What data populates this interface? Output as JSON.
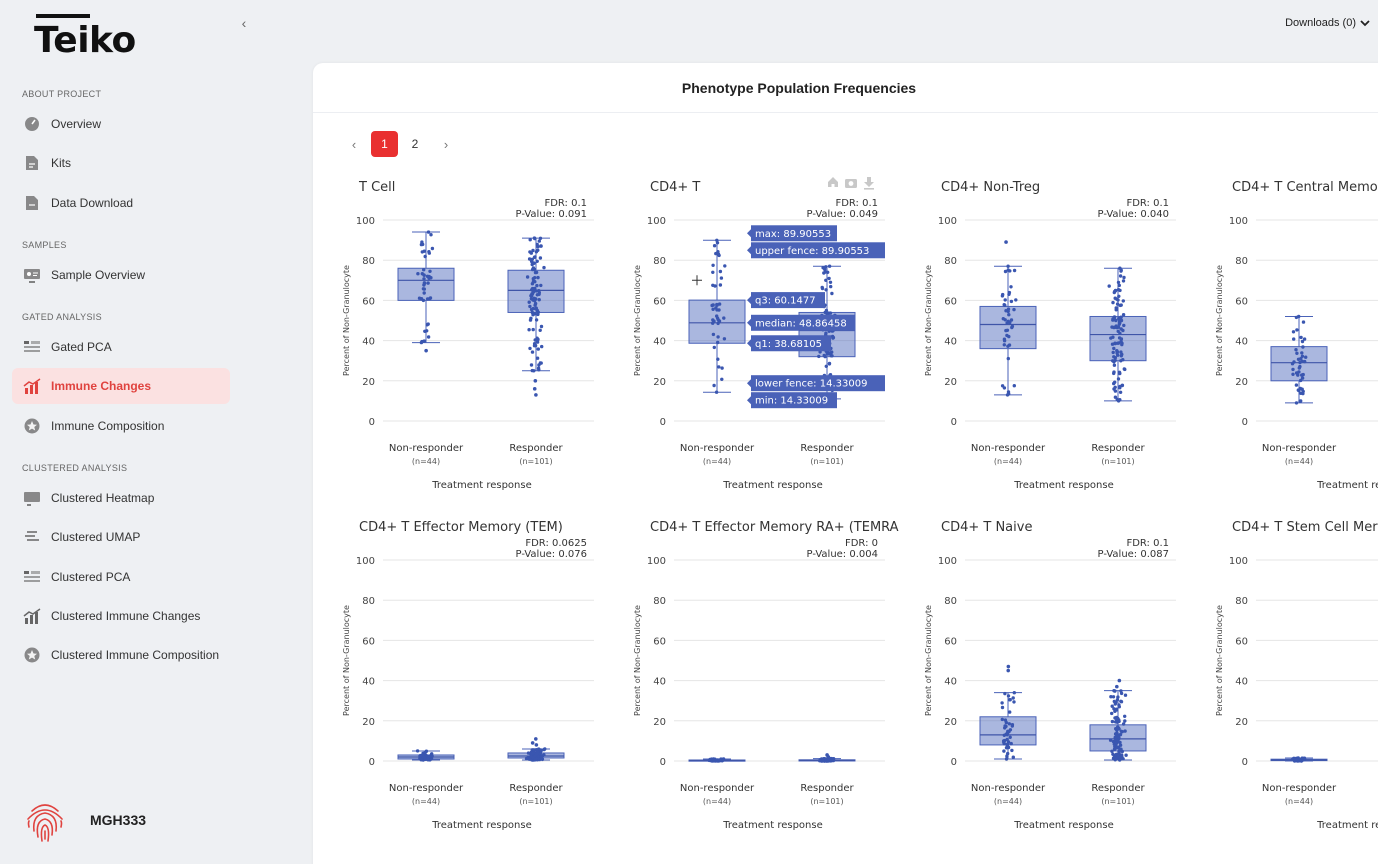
{
  "brand": {
    "name": "Teiko"
  },
  "header": {
    "downloads": "Downloads (0)"
  },
  "sidebar": {
    "sections": [
      {
        "title": "ABOUT PROJECT",
        "items": [
          {
            "label": "Overview",
            "icon": "gauge-icon"
          },
          {
            "label": "Kits",
            "icon": "document-icon"
          },
          {
            "label": "Data Download",
            "icon": "file-download-icon"
          }
        ]
      },
      {
        "title": "SAMPLES",
        "items": [
          {
            "label": "Sample Overview",
            "icon": "monitor-icon"
          }
        ]
      },
      {
        "title": "GATED ANALYSIS",
        "items": [
          {
            "label": "Gated PCA",
            "icon": "pca-icon"
          },
          {
            "label": "Immune Changes",
            "icon": "line-chart-icon",
            "active": true
          },
          {
            "label": "Immune Composition",
            "icon": "star-badge-icon"
          }
        ]
      },
      {
        "title": "CLUSTERED ANALYSIS",
        "items": [
          {
            "label": "Clustered Heatmap",
            "icon": "heatmap-icon"
          },
          {
            "label": "Clustered UMAP",
            "icon": "umap-icon"
          },
          {
            "label": "Clustered PCA",
            "icon": "pca-icon"
          },
          {
            "label": "Clustered Immune Changes",
            "icon": "line-chart-icon"
          },
          {
            "label": "Clustered Immune Composition",
            "icon": "star-badge-icon"
          }
        ]
      }
    ],
    "project": "MGH333"
  },
  "main": {
    "title": "Phenotype Population Frequencies",
    "pagination": {
      "prev": "‹",
      "next": "›",
      "pages": [
        "1",
        "2"
      ],
      "current": "1"
    }
  },
  "chart_data": [
    {
      "type": "box",
      "title": "T Cell",
      "fdr": "FDR: 0.1",
      "pvalue": "P-Value: 0.091",
      "ylabel": "Percent of Non-Granulocyte",
      "xlabel": "Treatment response",
      "ylim": [
        0,
        100
      ],
      "yticks": [
        0,
        20,
        40,
        60,
        80,
        100
      ],
      "groups": [
        {
          "name": "Non-responder",
          "n": "(n=44)",
          "min": 39,
          "q1": 60,
          "median": 70,
          "q3": 76,
          "max": 94,
          "points": 44,
          "outliers": [
            35
          ]
        },
        {
          "name": "Responder",
          "n": "(n=101)",
          "min": 25,
          "q1": 54,
          "median": 65,
          "q3": 75,
          "max": 91,
          "points": 101,
          "outliers": [
            13,
            16,
            20
          ]
        }
      ]
    },
    {
      "type": "box",
      "title": "CD4+ T",
      "fdr": "FDR: 0.1",
      "pvalue": "P-Value: 0.049",
      "ylabel": "Percent of Non-Granulocyte",
      "xlabel": "Treatment response",
      "ylim": [
        0,
        100
      ],
      "yticks": [
        0,
        20,
        40,
        60,
        80,
        100
      ],
      "groups": [
        {
          "name": "Non-responder",
          "n": "(n=44)",
          "min": 14.33,
          "q1": 38.68,
          "median": 48.86,
          "q3": 60.15,
          "max": 89.91,
          "points": 44,
          "outliers": []
        },
        {
          "name": "Responder",
          "n": "(n=101)",
          "min": 11,
          "q1": 32,
          "median": 45,
          "q3": 54,
          "max": 77,
          "points": 101,
          "outliers": []
        }
      ],
      "hover": [
        "max: 89.90553",
        "upper fence: 89.90553",
        "q3: 60.1477",
        "median: 48.86458",
        "q1: 38.68105",
        "lower fence: 14.33009",
        "min: 14.33009"
      ],
      "modebar": [
        "home-icon",
        "camera-icon",
        "download-icon"
      ]
    },
    {
      "type": "box",
      "title": "CD4+ Non-Treg",
      "fdr": "FDR: 0.1",
      "pvalue": "P-Value: 0.040",
      "ylabel": "Percent of Non-Granulocyte",
      "xlabel": "Treatment response",
      "ylim": [
        0,
        100
      ],
      "yticks": [
        0,
        20,
        40,
        60,
        80,
        100
      ],
      "groups": [
        {
          "name": "Non-responder",
          "n": "(n=44)",
          "min": 13,
          "q1": 36,
          "median": 48,
          "q3": 57,
          "max": 77,
          "points": 44,
          "outliers": [
            89
          ]
        },
        {
          "name": "Responder",
          "n": "(n=101)",
          "min": 10,
          "q1": 30,
          "median": 43,
          "q3": 52,
          "max": 76,
          "points": 101,
          "outliers": []
        }
      ]
    },
    {
      "type": "box",
      "title": "CD4+ T Central Memo",
      "fdr": "",
      "pvalue": "",
      "ylabel": "Percent of Non-Granulocyte",
      "xlabel": "Treatment resp",
      "ylim": [
        0,
        100
      ],
      "yticks": [
        0,
        20,
        40,
        60,
        80,
        100
      ],
      "groups": [
        {
          "name": "Non-responder",
          "n": "(n=44)",
          "min": 9,
          "q1": 20,
          "median": 29,
          "q3": 37,
          "max": 52,
          "points": 44,
          "outliers": []
        }
      ]
    },
    {
      "type": "box",
      "title": "CD4+ T Effector Memory (TEM)",
      "fdr": "FDR: 0.0625",
      "pvalue": "P-Value: 0.076",
      "ylabel": "Percent of Non-Granulocyte",
      "xlabel": "Treatment response",
      "ylim": [
        0,
        100
      ],
      "yticks": [
        0,
        20,
        40,
        60,
        80,
        100
      ],
      "groups": [
        {
          "name": "Non-responder",
          "n": "(n=44)",
          "min": 0.5,
          "q1": 1,
          "median": 2,
          "q3": 3,
          "max": 5,
          "points": 44,
          "outliers": []
        },
        {
          "name": "Responder",
          "n": "(n=101)",
          "min": 0.5,
          "q1": 1.5,
          "median": 2.5,
          "q3": 4,
          "max": 6,
          "points": 101,
          "outliers": [
            8,
            9,
            11
          ]
        }
      ]
    },
    {
      "type": "box",
      "title": "CD4+ T Effector Memory RA+ (TEMRA",
      "fdr": "FDR: 0",
      "pvalue": "P-Value: 0.004",
      "ylabel": "Percent of Non-Granulocyte",
      "xlabel": "Treatment response",
      "ylim": [
        0,
        100
      ],
      "yticks": [
        0,
        20,
        40,
        60,
        80,
        100
      ],
      "groups": [
        {
          "name": "Non-responder",
          "n": "(n=44)",
          "min": 0,
          "q1": 0.1,
          "median": 0.3,
          "q3": 0.5,
          "max": 1,
          "points": 44,
          "outliers": []
        },
        {
          "name": "Responder",
          "n": "(n=101)",
          "min": 0,
          "q1": 0.1,
          "median": 0.3,
          "q3": 0.6,
          "max": 1.2,
          "points": 101,
          "outliers": [
            2,
            3
          ]
        }
      ]
    },
    {
      "type": "box",
      "title": "CD4+ T Naive",
      "fdr": "FDR: 0.1",
      "pvalue": "P-Value: 0.087",
      "ylabel": "Percent of Non-Granulocyte",
      "xlabel": "Treatment response",
      "ylim": [
        0,
        100
      ],
      "yticks": [
        0,
        20,
        40,
        60,
        80,
        100
      ],
      "groups": [
        {
          "name": "Non-responder",
          "n": "(n=44)",
          "min": 1,
          "q1": 8,
          "median": 13,
          "q3": 22,
          "max": 34,
          "points": 44,
          "outliers": [
            45,
            47
          ]
        },
        {
          "name": "Responder",
          "n": "(n=101)",
          "min": 0.5,
          "q1": 5,
          "median": 11,
          "q3": 18,
          "max": 35,
          "points": 101,
          "outliers": [
            37,
            40
          ]
        }
      ]
    },
    {
      "type": "box",
      "title": "CD4+ T Stem Cell Mer",
      "fdr": "",
      "pvalue": "",
      "ylabel": "Percent of Non-Granulocyte",
      "xlabel": "Treatment resp",
      "ylim": [
        0,
        100
      ],
      "yticks": [
        0,
        20,
        40,
        60,
        80,
        100
      ],
      "groups": [
        {
          "name": "Non-responder",
          "n": "(n=44)",
          "min": 0,
          "q1": 0.2,
          "median": 0.5,
          "q3": 0.9,
          "max": 1.5,
          "points": 44,
          "outliers": []
        }
      ]
    }
  ]
}
